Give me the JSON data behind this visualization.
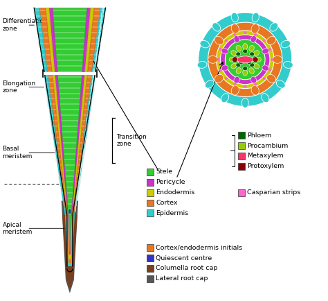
{
  "colors": {
    "stele": "#33cc33",
    "pericycle": "#cc33cc",
    "endodermis": "#cccc00",
    "cortex": "#e87722",
    "epidermis": "#33cccc",
    "phloem": "#006600",
    "procambium": "#99cc00",
    "metaxylem": "#ff3366",
    "protoxylem": "#8b0000",
    "casparian": "#ff66cc",
    "cortex_initials": "#e87722",
    "quiescent": "#3333cc",
    "columella": "#7b3f1e",
    "lateral_cap": "#555555",
    "background": "#ffffff",
    "cell_border": "#ffffff"
  },
  "legend_items_left": [
    {
      "color": "#33cc33",
      "label": "Stele"
    },
    {
      "color": "#cc33cc",
      "label": "Pericycle"
    },
    {
      "color": "#cccc00",
      "label": "Endodermis"
    },
    {
      "color": "#e87722",
      "label": "Cortex"
    },
    {
      "color": "#33cccc",
      "label": "Epidermis"
    }
  ],
  "legend_items_right_top": [
    {
      "color": "#006600",
      "label": "Phloem"
    },
    {
      "color": "#99cc00",
      "label": "Procambium"
    },
    {
      "color": "#ff3366",
      "label": "Metaxylem"
    },
    {
      "color": "#8b0000",
      "label": "Protoxylem"
    }
  ],
  "legend_items_casparian": [
    {
      "color": "#ff66cc",
      "label": "Casparian strips"
    }
  ],
  "legend_items_bottom": [
    {
      "color": "#e87722",
      "label": "Cortex/endodermis initials"
    },
    {
      "color": "#3333cc",
      "label": "Quiescent centre"
    },
    {
      "color": "#7b3f1e",
      "label": "Columella root cap"
    },
    {
      "color": "#555555",
      "label": "Lateral root cap"
    }
  ],
  "transition_zone_label": "Transition\nzone"
}
